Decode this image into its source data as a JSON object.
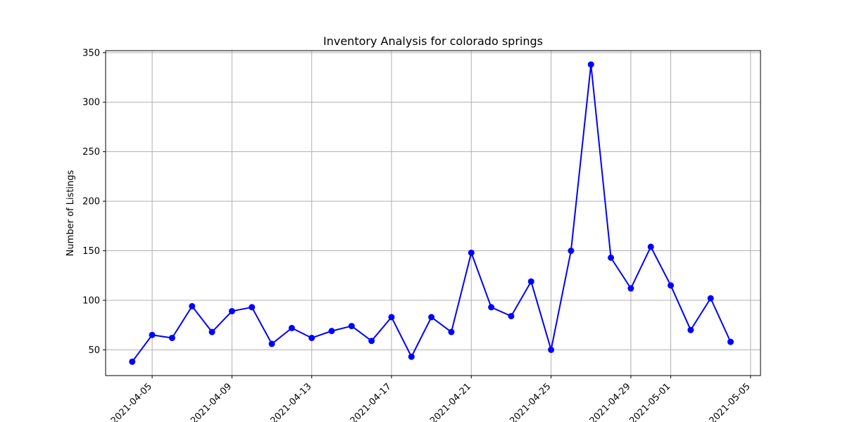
{
  "chart_data": {
    "type": "line",
    "title": "Inventory Analysis for colorado springs",
    "xlabel": "",
    "ylabel": "Number of Listings",
    "x_ticks": [
      "2021-04-05",
      "2021-04-09",
      "2021-04-13",
      "2021-04-17",
      "2021-04-21",
      "2021-04-25",
      "2021-04-29",
      "2021-05-01",
      "2021-05-05"
    ],
    "y_ticks": [
      50,
      100,
      150,
      200,
      250,
      300,
      350
    ],
    "xlim": [
      "2021-04-02T16:00",
      "2021-05-05T12:00"
    ],
    "ylim": [
      24,
      352
    ],
    "grid": true,
    "series": [
      {
        "color": "#0000ff",
        "marker": "circle",
        "x": [
          "2021-04-04",
          "2021-04-05",
          "2021-04-06",
          "2021-04-07",
          "2021-04-08",
          "2021-04-09",
          "2021-04-10",
          "2021-04-11",
          "2021-04-12",
          "2021-04-13",
          "2021-04-14",
          "2021-04-15",
          "2021-04-16",
          "2021-04-17",
          "2021-04-18",
          "2021-04-19",
          "2021-04-20",
          "2021-04-21",
          "2021-04-22",
          "2021-04-23",
          "2021-04-24",
          "2021-04-25",
          "2021-04-26",
          "2021-04-27",
          "2021-04-28",
          "2021-04-29",
          "2021-04-30",
          "2021-05-01",
          "2021-05-02",
          "2021-05-03",
          "2021-05-04"
        ],
        "values": [
          38,
          65,
          62,
          94,
          68,
          89,
          93,
          56,
          72,
          62,
          69,
          74,
          59,
          83,
          43,
          83,
          68,
          148,
          93,
          84,
          119,
          50,
          150,
          338,
          143,
          112,
          154,
          115,
          70,
          102,
          58
        ]
      }
    ]
  }
}
